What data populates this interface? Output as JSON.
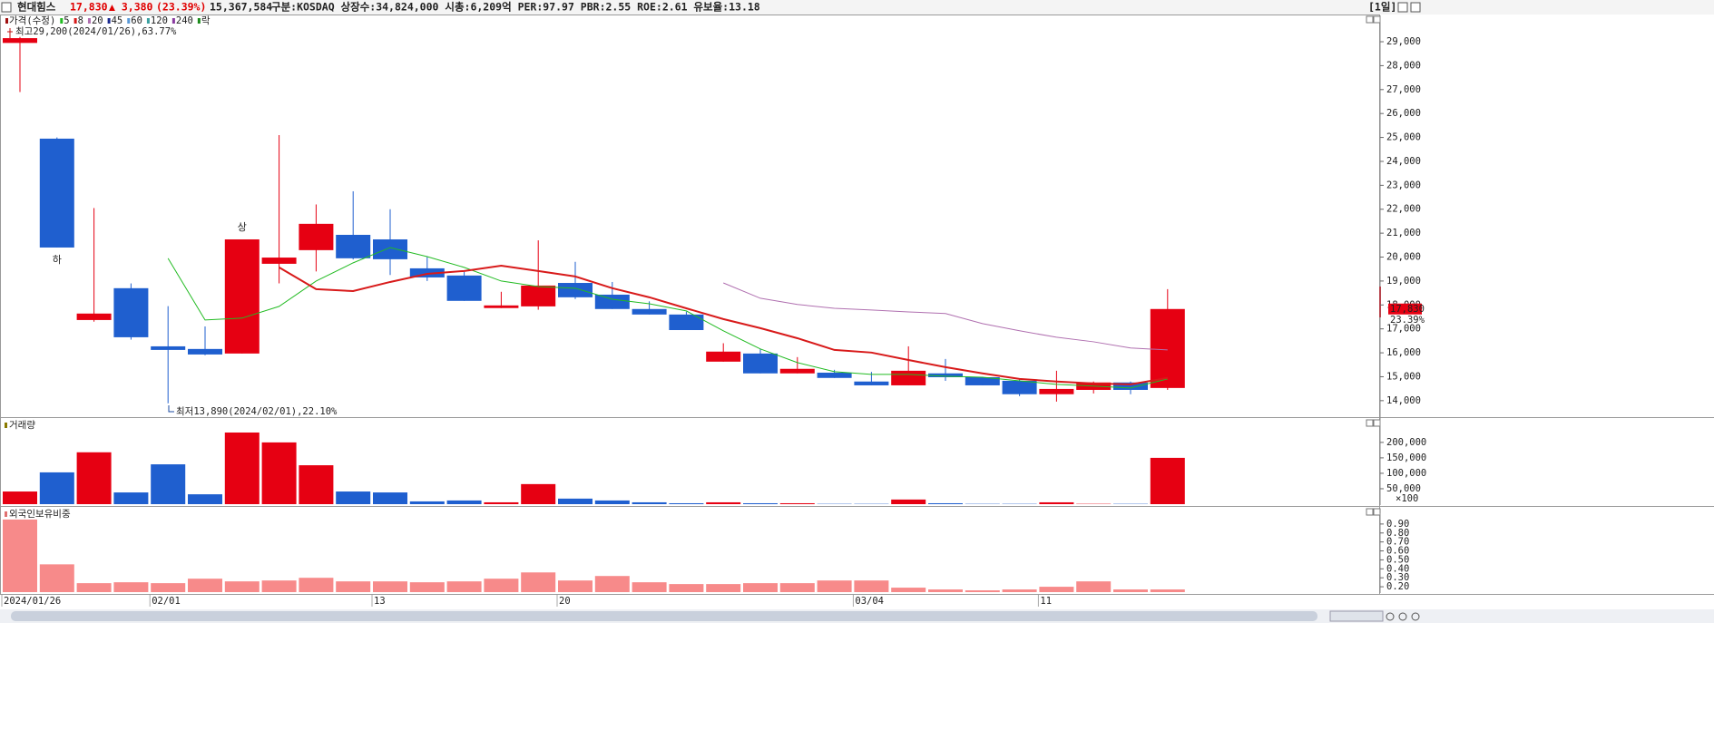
{
  "header": {
    "name": "현대힘스",
    "price": "17,830",
    "change": "▲ 3,380",
    "change_pct": "(23.39%)",
    "volume": "15,367,584",
    "info": "구분:KOSDAQ 상장수:34,824,000 시총:6,209억 PER:97.97 PBR:2.55 ROE:2.61 유보율:13.18",
    "period": "[1일]"
  },
  "chart_data": [
    {
      "type": "candlestick",
      "price_label": "가격(수정)",
      "categories": [
        "2024/01/26",
        null,
        null,
        null,
        "02/01",
        null,
        null,
        null,
        null,
        null,
        "13",
        null,
        null,
        null,
        null,
        "20",
        null,
        null,
        null,
        null,
        null,
        null,
        null,
        "03/04",
        null,
        null,
        null,
        null,
        "11",
        null,
        null,
        null
      ],
      "open": [
        28950,
        24950,
        17370,
        18700,
        16270,
        16160,
        15970,
        19720,
        20290,
        20930,
        20740,
        19530,
        19230,
        17870,
        17940,
        18920,
        18430,
        17830,
        17600,
        15630,
        15970,
        15140,
        15170,
        14800,
        14640,
        15140,
        14980,
        14830,
        14270,
        14450,
        14760,
        14530
      ],
      "high": [
        29200,
        25000,
        22050,
        18900,
        17950,
        17100,
        20740,
        25100,
        22200,
        22750,
        22000,
        20000,
        19380,
        18550,
        20700,
        19800,
        18960,
        18150,
        17720,
        16400,
        16160,
        15820,
        15290,
        15200,
        16270,
        15740,
        15000,
        14900,
        15250,
        14800,
        14800,
        18660
      ],
      "low": [
        26900,
        20400,
        17300,
        16550,
        13890,
        15900,
        15970,
        18900,
        19400,
        19900,
        19250,
        19000,
        18170,
        17870,
        17800,
        18250,
        17830,
        17600,
        16950,
        15630,
        15140,
        15140,
        14950,
        14640,
        14640,
        14830,
        14640,
        14190,
        13960,
        14300,
        14270,
        14450
      ],
      "close": [
        29150,
        20400,
        17640,
        16650,
        16120,
        15930,
        20740,
        19980,
        21390,
        19950,
        19910,
        19150,
        18170,
        17980,
        18810,
        18320,
        17830,
        17600,
        16950,
        16050,
        15140,
        15330,
        14950,
        14640,
        15250,
        14980,
        14640,
        14270,
        14490,
        14760,
        14450,
        17830
      ],
      "up_color": "#e60012",
      "down_color": "#1f5fcf",
      "series": [
        {
          "name": "5",
          "color": "#22bb22",
          "values": [
            null,
            null,
            null,
            null,
            19950,
            17370,
            17450,
            17940,
            19000,
            19760,
            20400,
            20020,
            19570,
            19000,
            18770,
            18700,
            18240,
            18050,
            17750,
            16920,
            16160,
            15590,
            15210,
            15100,
            15100,
            15020,
            14980,
            14830,
            14680,
            14610,
            14530,
            14910
          ]
        },
        {
          "name": "8",
          "color": "#d81a1a",
          "values": [
            null,
            null,
            null,
            null,
            null,
            null,
            null,
            19570,
            18660,
            18580,
            18960,
            19300,
            19420,
            19640,
            19420,
            19190,
            18700,
            18320,
            17860,
            17410,
            17030,
            16610,
            16120,
            16010,
            15700,
            15400,
            15140,
            14910,
            14800,
            14720,
            14680,
            14950
          ]
        },
        {
          "name": "20",
          "color": "#b070b0",
          "values": [
            null,
            null,
            null,
            null,
            null,
            null,
            null,
            null,
            null,
            null,
            null,
            null,
            null,
            null,
            null,
            null,
            null,
            null,
            null,
            18920,
            18280,
            18020,
            17860,
            17790,
            17710,
            17640,
            17220,
            16920,
            16650,
            16460,
            16200,
            16120
          ]
        }
      ],
      "legend_more": [
        {
          "name": "45",
          "color": "#1a2a90"
        },
        {
          "name": "60",
          "color": "#5a9ad8"
        },
        {
          "name": "120",
          "color": "#3aa0a0"
        },
        {
          "name": "240",
          "color": "#8a3aa0"
        },
        {
          "name": "락",
          "color": "#1a8a1a"
        }
      ],
      "annotations": {
        "high": "최고29,200(2024/01/26),63.77%",
        "low": "최저13,890(2024/02/01),22.10%",
        "upper_limit": "상",
        "lower_limit": "하"
      },
      "last_price": {
        "value": 17830,
        "label": "17,830"
      },
      "last_change": "23.39%",
      "ylim": [
        13350,
        30100
      ],
      "yticks": [
        {
          "value": 14000,
          "label": "14,000"
        },
        {
          "value": 15000,
          "label": "15,000"
        },
        {
          "value": 16000,
          "label": "16,000"
        },
        {
          "value": 17000,
          "label": "17,000"
        },
        {
          "value": 18000,
          "label": "18,000"
        },
        {
          "value": 19000,
          "label": "19,000"
        },
        {
          "value": 20000,
          "label": "20,000"
        },
        {
          "value": 21000,
          "label": "21,000"
        },
        {
          "value": 22000,
          "label": "22,000"
        },
        {
          "value": 23000,
          "label": "23,000"
        },
        {
          "value": 24000,
          "label": "24,000"
        },
        {
          "value": 25000,
          "label": "25,000"
        },
        {
          "value": 26000,
          "label": "26,000"
        },
        {
          "value": 27000,
          "label": "27,000"
        },
        {
          "value": 28000,
          "label": "28,000"
        },
        {
          "value": 29000,
          "label": "29,000"
        }
      ]
    },
    {
      "type": "bar",
      "title": "거래량",
      "unit": "×100",
      "values": [
        41000,
        103000,
        168000,
        38000,
        129000,
        32000,
        232000,
        200000,
        126000,
        41000,
        38000,
        9000,
        12000,
        6000,
        65000,
        18000,
        12000,
        6000,
        3000,
        6000,
        3000,
        3000,
        1000,
        1000,
        15000,
        3000,
        1000,
        1000,
        6000,
        1000,
        1000,
        150000
      ],
      "ylim": [
        0,
        276000
      ],
      "yticks": [
        {
          "value": 50000,
          "label": "50,000"
        },
        {
          "value": 100000,
          "label": "100,000"
        },
        {
          "value": 150000,
          "label": "150,000"
        },
        {
          "value": 200000,
          "label": "200,000"
        }
      ]
    },
    {
      "type": "bar",
      "title": "외국인보유비중",
      "color": "#f78a8a",
      "values": [
        0.95,
        0.45,
        0.24,
        0.25,
        0.24,
        0.29,
        0.26,
        0.27,
        0.3,
        0.26,
        0.26,
        0.25,
        0.26,
        0.29,
        0.36,
        0.27,
        0.32,
        0.25,
        0.23,
        0.23,
        0.24,
        0.24,
        0.27,
        0.27,
        0.19,
        0.17,
        0.16,
        0.17,
        0.2,
        0.26,
        0.17,
        0.17
      ],
      "ylim": [
        0.14,
        1.0
      ],
      "yticks": [
        {
          "value": 0.2,
          "label": "0.20"
        },
        {
          "value": 0.3,
          "label": "0.30"
        },
        {
          "value": 0.4,
          "label": "0.40"
        },
        {
          "value": 0.5,
          "label": "0.50"
        },
        {
          "value": 0.6,
          "label": "0.60"
        },
        {
          "value": 0.7,
          "label": "0.70"
        },
        {
          "value": 0.8,
          "label": "0.80"
        },
        {
          "value": 0.9,
          "label": "0.90"
        }
      ]
    }
  ]
}
